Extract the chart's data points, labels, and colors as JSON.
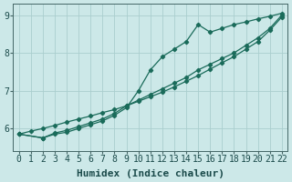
{
  "xlabel": "Humidex (Indice chaleur)",
  "ylabel": "",
  "xlim": [
    -0.5,
    22.5
  ],
  "ylim": [
    5.4,
    9.3
  ],
  "background_color": "#cce8e8",
  "grid_color": "#aacece",
  "line_color": "#1a6b5a",
  "x_ticks": [
    0,
    1,
    2,
    3,
    4,
    5,
    6,
    7,
    8,
    9,
    10,
    11,
    12,
    13,
    14,
    15,
    16,
    17,
    18,
    19,
    20,
    21,
    22
  ],
  "y_ticks": [
    6,
    7,
    8,
    9
  ],
  "line1_x": [
    0,
    1,
    2,
    3,
    4,
    5,
    6,
    7,
    8,
    9,
    10,
    11,
    12,
    13,
    14,
    15,
    16,
    17,
    18,
    19,
    20,
    21,
    22
  ],
  "line1_y": [
    5.85,
    5.93,
    6.0,
    6.08,
    6.17,
    6.25,
    6.33,
    6.42,
    6.5,
    6.6,
    6.72,
    6.84,
    6.96,
    7.1,
    7.25,
    7.4,
    7.57,
    7.74,
    7.9,
    8.1,
    8.3,
    8.6,
    8.95
  ],
  "line2_x": [
    0,
    2,
    3,
    4,
    5,
    6,
    7,
    8,
    9,
    10,
    11,
    12,
    13,
    14,
    15,
    16,
    17,
    18,
    19,
    20,
    21,
    22
  ],
  "line2_y": [
    5.85,
    5.75,
    5.85,
    5.9,
    6.0,
    6.1,
    6.2,
    6.35,
    6.55,
    7.0,
    7.55,
    7.9,
    8.1,
    8.3,
    8.75,
    8.55,
    8.65,
    8.75,
    8.82,
    8.9,
    8.97,
    9.05
  ],
  "line3_x": [
    0,
    2,
    3,
    4,
    5,
    6,
    7,
    8,
    9,
    10,
    11,
    12,
    13,
    14,
    15,
    16,
    17,
    18,
    19,
    20,
    21,
    22
  ],
  "line3_y": [
    5.85,
    5.75,
    5.88,
    5.95,
    6.05,
    6.15,
    6.25,
    6.4,
    6.6,
    6.75,
    6.9,
    7.05,
    7.2,
    7.35,
    7.55,
    7.7,
    7.85,
    8.0,
    8.2,
    8.4,
    8.65,
    9.0
  ],
  "tick_fontsize": 7,
  "label_fontsize": 8
}
